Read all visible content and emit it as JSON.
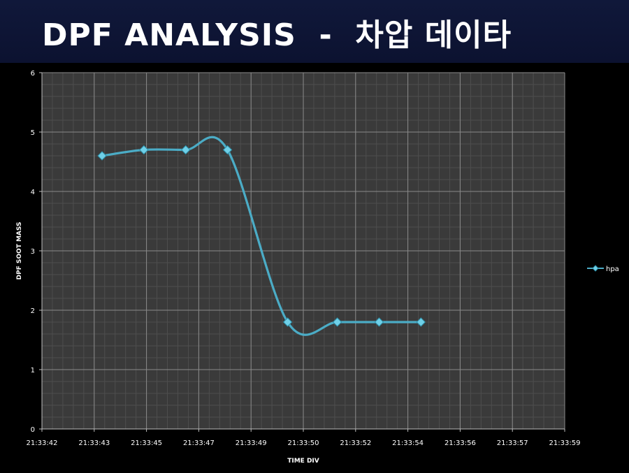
{
  "banner": {
    "title": "DPF ANALYSIS  -  차압 데이타"
  },
  "chart_data": {
    "type": "line",
    "xlabel": "TIME DIV",
    "ylabel": "DPF SOOT MASS",
    "ylim": [
      0,
      6
    ],
    "y_ticks": [
      "0",
      "1",
      "2",
      "3",
      "4",
      "5",
      "6"
    ],
    "x_ticks": [
      "21:33:42",
      "21:33:43",
      "21:33:45",
      "21:33:47",
      "21:33:49",
      "21:33:50",
      "21:33:52",
      "21:33:54",
      "21:33:56",
      "21:33:57",
      "21:33:59"
    ],
    "grid": true,
    "legend_position": "right",
    "series": [
      {
        "name": "hpa",
        "color": "#4bacc6",
        "x": [
          "21:33:43.3",
          "21:33:44.9",
          "21:33:46.5",
          "21:33:48.1",
          "21:33:49.7",
          "21:33:51.3",
          "21:33:52.9",
          "21:33:54.5"
        ],
        "values": [
          4.6,
          4.7,
          4.7,
          4.7,
          1.8,
          1.8,
          1.8,
          1.8
        ]
      }
    ]
  }
}
